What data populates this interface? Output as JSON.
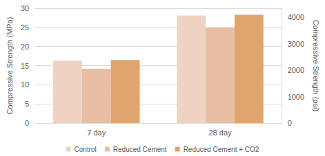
{
  "chart_data": {
    "type": "bar",
    "y_label": "Compressive Strength (MPa)",
    "y2_label": "Compressive Strength (psi)",
    "categories": [
      "7 day",
      "28 day"
    ],
    "series": [
      {
        "name": "Control",
        "color": "#f0d2c0",
        "values": [
          16.3,
          28.1
        ]
      },
      {
        "name": "Reduced Cement",
        "color": "#e8bfa4",
        "values": [
          14.2,
          25.0
        ]
      },
      {
        "name": "Reduced Cement + CO2",
        "color": "#e0a46e",
        "values": [
          16.5,
          28.3
        ]
      }
    ],
    "ylim": [
      0,
      30
    ],
    "yticks": [
      0,
      5,
      10,
      15,
      20,
      25,
      30
    ],
    "y2lim": [
      0,
      4351
    ],
    "y2ticks": [
      0,
      1000,
      2000,
      3000,
      4000
    ],
    "grid": true,
    "legend": "bottom"
  }
}
